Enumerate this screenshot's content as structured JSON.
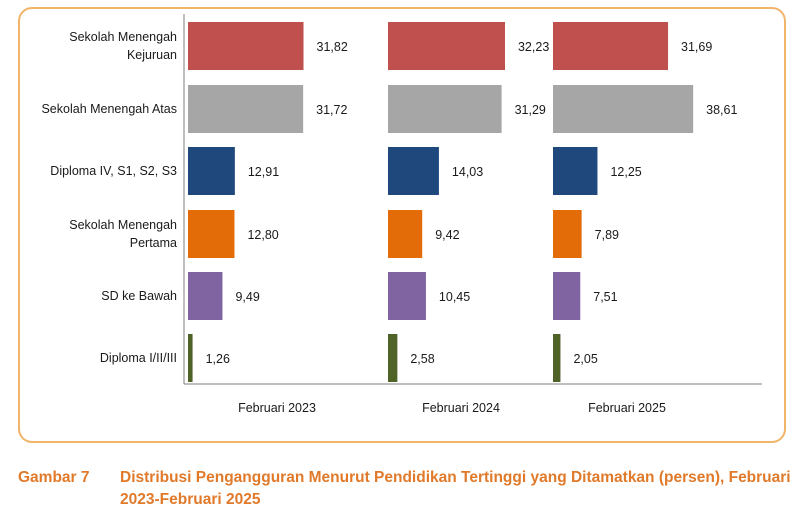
{
  "caption": {
    "number": "Gambar 7",
    "title": "Distribusi Pengangguran Menurut Pendidikan Tertinggi yang Ditamatkan (persen), Februari 2023-Februari 2025"
  },
  "chart_data": {
    "type": "bar",
    "orientation": "horizontal",
    "layout": "small-multiples",
    "categories": [
      [
        "Sekolah Menengah",
        "Kejuruan"
      ],
      [
        "Sekolah Menengah Atas"
      ],
      [
        "Diploma IV, S1, S2, S3"
      ],
      [
        "Sekolah Menengah",
        "Pertama"
      ],
      [
        "SD ke Bawah"
      ],
      [
        "Diploma I/II/III"
      ]
    ],
    "colors": [
      "#c0504d",
      "#a6a6a6",
      "#1f497d",
      "#e36c09",
      "#8064a2",
      "#4f6228"
    ],
    "panels": [
      {
        "label": "Februari 2023",
        "values": [
          31.82,
          31.72,
          12.91,
          12.8,
          9.49,
          1.26
        ],
        "value_labels": [
          "31,82",
          "31,72",
          "12,91",
          "12,80",
          "9,49",
          "1,26"
        ]
      },
      {
        "label": "Februari 2024",
        "values": [
          32.23,
          31.29,
          14.03,
          9.42,
          10.45,
          2.58
        ],
        "value_labels": [
          "32,23",
          "31,29",
          "14,03",
          "9,42",
          "10,45",
          "2,58"
        ]
      },
      {
        "label": "Februari 2025",
        "values": [
          31.69,
          38.61,
          12.25,
          7.89,
          7.51,
          2.05
        ],
        "value_labels": [
          "31,69",
          "38,61",
          "12,25",
          "7,89",
          "7,51",
          "2,05"
        ]
      }
    ],
    "grid": false,
    "legend": "none"
  }
}
